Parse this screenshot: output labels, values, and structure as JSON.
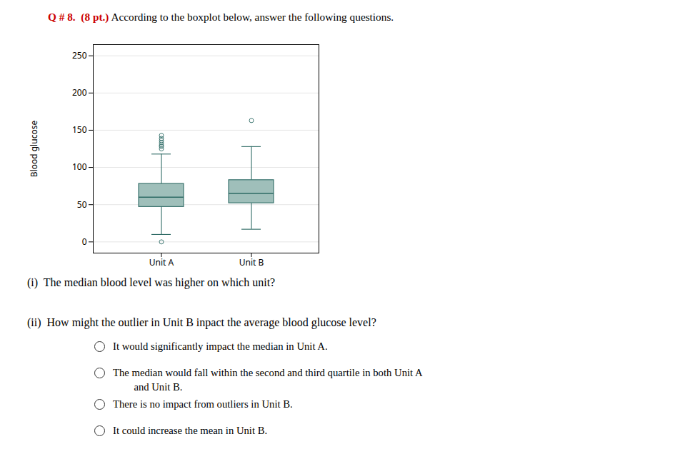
{
  "chart_data": {
    "type": "box",
    "annotations": [
      {
        "text": "Q # 8.  (8 pt.)",
        "color": "#cc0000"
      },
      {
        "text": " According to the boxplot below, answer the following questions."
      },
      {
        "text": "(i)  The median blood level was higher on which unit?"
      },
      {
        "text": "(ii)  How might the outlier in Unit B inpact the average blood glucose level?"
      }
    ],
    "choices": [
      "It would significantly impact the median in Unit A.",
      "The median would fall within the second and third quartile in both Unit A\n        and Unit B.",
      "There is no impact from outliers in Unit B.",
      "It could increase the mean in Unit B."
    ],
    "ylabel": "Blood glucose",
    "categories": [
      "Unit A",
      "Unit B"
    ],
    "boxes": [
      {
        "q1": 47,
        "median": 60,
        "q3": 78,
        "whisker_low": 10,
        "whisker_high": 118,
        "outliers": [
          0,
          125,
          128,
          130,
          133,
          136,
          139,
          143
        ]
      },
      {
        "q1": 52,
        "median": 65,
        "q3": 83,
        "whisker_low": 17,
        "whisker_high": 128,
        "outliers": [
          163
        ]
      }
    ],
    "color": "#9fbfba",
    "edge_color": "#2e6b65",
    "ylim": [
      -15,
      265
    ],
    "yticks": [
      0,
      50,
      100,
      150,
      200,
      250
    ],
    "grid": true
  }
}
